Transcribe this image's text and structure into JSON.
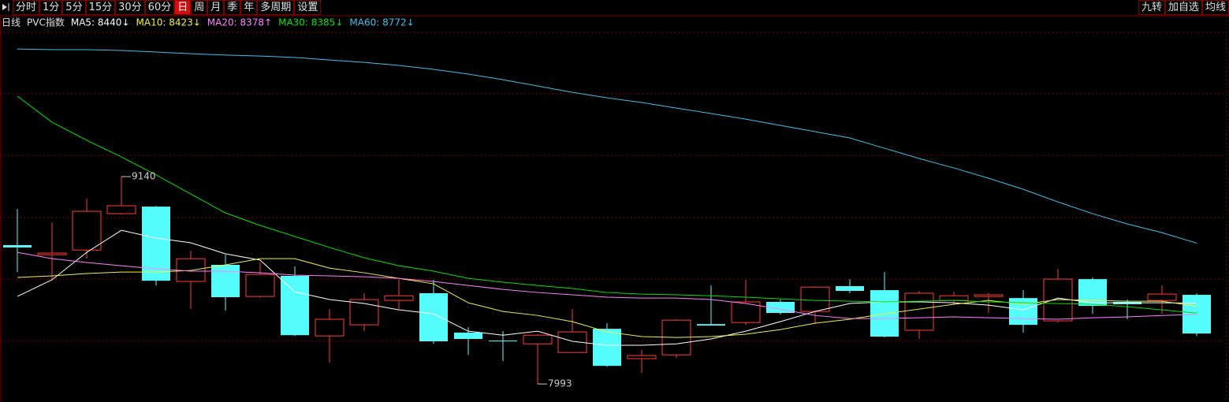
{
  "toolbar": {
    "periods": [
      "分时",
      "1分",
      "5分",
      "15分",
      "30分",
      "60分",
      "日",
      "周",
      "月",
      "季",
      "年",
      "多周期",
      "设置"
    ],
    "active_index": 6,
    "tools": [
      "九转",
      "加自选",
      "均线"
    ]
  },
  "chart_data": {
    "type": "candlestick",
    "period_label": "日线",
    "title": "PVC指数",
    "open": [
      8761,
      8708,
      8734,
      8935,
      8974,
      8560,
      8652,
      8477,
      8591,
      8259,
      8320,
      8455,
      8495,
      8277,
      8233,
      8215,
      8167,
      8298,
      8133,
      8154,
      8324,
      8333,
      8447,
      8394,
      8534,
      8512,
      8290,
      8455,
      8477,
      8468,
      8342,
      8573,
      8447,
      8455,
      8486
    ],
    "high": [
      8961,
      8887,
      9018,
      9140,
      8978,
      8730,
      8708,
      8665,
      8643,
      8407,
      8495,
      8569,
      8569,
      8307,
      8285,
      8268,
      8407,
      8329,
      8181,
      8351,
      8538,
      8569,
      8460,
      8534,
      8573,
      8612,
      8508,
      8503,
      8495,
      8512,
      8630,
      8582,
      8460,
      8538,
      8495
    ],
    "low": [
      8612,
      8569,
      8686,
      8931,
      8538,
      8407,
      8399,
      8470,
      8258,
      8111,
      8285,
      8407,
      8215,
      8154,
      8120,
      7993,
      8167,
      8088,
      8054,
      8137,
      8316,
      8320,
      8377,
      8324,
      8495,
      8250,
      8242,
      8434,
      8386,
      8277,
      8333,
      8381,
      8351,
      8381,
      8259
    ],
    "close": [
      8748,
      8717,
      8948,
      8979,
      8564,
      8686,
      8473,
      8599,
      8263,
      8351,
      8460,
      8481,
      8229,
      8242,
      8229,
      8263,
      8281,
      8093,
      8150,
      8346,
      8316,
      8447,
      8386,
      8529,
      8508,
      8255,
      8495,
      8481,
      8486,
      8320,
      8573,
      8425,
      8434,
      8490,
      8272
    ],
    "up_color": "#ff3b3b",
    "down_color": "#54fcfc",
    "series": [
      {
        "name": "MA5: 8440↓",
        "color": "#ffffff",
        "values": [
          8477,
          8569,
          8721,
          8843,
          8800,
          8774,
          8713,
          8678,
          8503,
          8460,
          8438,
          8403,
          8381,
          8285,
          8263,
          8285,
          8229,
          8207,
          8207,
          8215,
          8242,
          8285,
          8338,
          8394,
          8438,
          8447,
          8447,
          8442,
          8429,
          8403,
          8468,
          8442,
          8442,
          8442,
          8440
        ]
      },
      {
        "name": "MA10: 8423↓",
        "color": "#f0f040",
        "values": [
          8582,
          8591,
          8604,
          8612,
          8612,
          8621,
          8652,
          8686,
          8686,
          8634,
          8608,
          8577,
          8547,
          8442,
          8394,
          8372,
          8338,
          8281,
          8255,
          8250,
          8255,
          8268,
          8294,
          8329,
          8351,
          8381,
          8407,
          8434,
          8455,
          8434,
          8460,
          8455,
          8451,
          8451,
          8423
        ]
      },
      {
        "name": "MA20: 8378↑",
        "color": "#ff80ff",
        "values": [
          8721,
          8686,
          8665,
          8647,
          8630,
          8617,
          8617,
          8608,
          8595,
          8591,
          8586,
          8577,
          8560,
          8538,
          8516,
          8499,
          8486,
          8473,
          8468,
          8468,
          8460,
          8438,
          8407,
          8372,
          8355,
          8355,
          8359,
          8364,
          8359,
          8355,
          8351,
          8359,
          8364,
          8372,
          8378
        ]
      },
      {
        "name": "MA30: 8385↓",
        "color": "#00e000",
        "values": [
          9585,
          9441,
          9341,
          9249,
          9149,
          9044,
          8939,
          8870,
          8809,
          8748,
          8691,
          8647,
          8617,
          8577,
          8556,
          8538,
          8521,
          8499,
          8490,
          8486,
          8481,
          8473,
          8464,
          8455,
          8451,
          8447,
          8451,
          8455,
          8447,
          8442,
          8438,
          8434,
          8420,
          8403,
          8385
        ]
      },
      {
        "name": "MA60: 8772↓",
        "color": "#40c0e8",
        "values": [
          9846,
          9842,
          9842,
          9838,
          9829,
          9820,
          9812,
          9807,
          9799,
          9785,
          9772,
          9755,
          9733,
          9707,
          9676,
          9641,
          9606,
          9576,
          9550,
          9519,
          9489,
          9458,
          9423,
          9389,
          9354,
          9297,
          9240,
          9188,
          9131,
          9070,
          9000,
          8935,
          8878,
          8830,
          8772
        ]
      }
    ],
    "ylim": [
      7915,
      10021
    ],
    "ygrid": [
      9598,
      9258,
      8913,
      8573,
      8233
    ],
    "grid": true
  }
}
